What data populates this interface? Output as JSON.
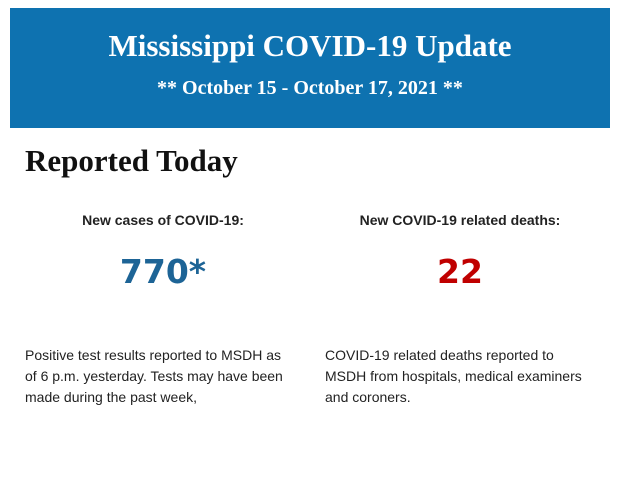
{
  "header": {
    "title": "Mississippi COVID-19 Update",
    "subtitle": "** October 15 - October 17, 2021 **"
  },
  "section": {
    "title": "Reported Today",
    "stats": [
      {
        "label": "New cases of COVID-19:",
        "value": "770*",
        "color": "#1d6496",
        "description": [
          "Positive test results reported to MSDH as",
          "of 6 p.m. yesterday. Tests may have been",
          "made during the past week,"
        ]
      },
      {
        "label": "New COVID-19 related deaths:",
        "value": "22",
        "color": "#c00000",
        "description": [
          "COVID-19 related deaths reported to",
          "MSDH from hospitals, medical examiners",
          "and coroners."
        ]
      }
    ]
  }
}
